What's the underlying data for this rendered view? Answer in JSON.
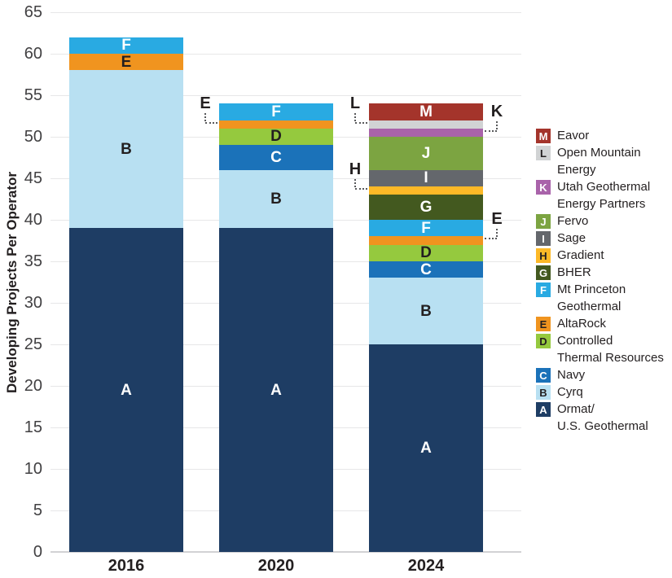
{
  "chart_data": {
    "type": "bar",
    "stacked": true,
    "title": "",
    "ylabel": "Developing Projects Per Operator",
    "xlabel": "",
    "ylim": [
      0,
      65
    ],
    "ytick_step": 5,
    "grid": true,
    "legend_position": "right",
    "categories": [
      "2016",
      "2020",
      "2024"
    ],
    "series": [
      {
        "key": "A",
        "name": "Ormat/U.S. Geothermal",
        "legend_lines": [
          "Ormat/",
          "U.S. Geothermal"
        ],
        "color": "#1e3d64",
        "text": "light",
        "values": [
          39,
          39,
          25
        ]
      },
      {
        "key": "B",
        "name": "Cyrq",
        "legend_lines": [
          "Cyrq"
        ],
        "color": "#b8e0f2",
        "text": "dark",
        "values": [
          19,
          7,
          8
        ]
      },
      {
        "key": "C",
        "name": "Navy",
        "legend_lines": [
          "Navy"
        ],
        "color": "#1b72b9",
        "text": "light",
        "values": [
          0,
          3,
          2
        ]
      },
      {
        "key": "D",
        "name": "Controlled Thermal Resources",
        "legend_lines": [
          "Controlled",
          "Thermal Resources"
        ],
        "color": "#95c93e",
        "text": "dark",
        "values": [
          0,
          2,
          2
        ]
      },
      {
        "key": "E",
        "name": "AltaRock",
        "legend_lines": [
          "AltaRock"
        ],
        "color": "#f0941f",
        "text": "dark",
        "values": [
          2,
          1,
          1
        ]
      },
      {
        "key": "F",
        "name": "Mt Princeton Geothermal",
        "legend_lines": [
          "Mt Princeton",
          "Geothermal"
        ],
        "color": "#29aae2",
        "text": "light",
        "values": [
          2,
          2,
          2
        ]
      },
      {
        "key": "G",
        "name": "BHER",
        "legend_lines": [
          "BHER"
        ],
        "color": "#43591f",
        "text": "light",
        "values": [
          0,
          0,
          3
        ]
      },
      {
        "key": "H",
        "name": "Gradient",
        "legend_lines": [
          "Gradient"
        ],
        "color": "#fdb927",
        "text": "dark",
        "values": [
          0,
          0,
          1
        ]
      },
      {
        "key": "I",
        "name": "Sage",
        "legend_lines": [
          "Sage"
        ],
        "color": "#64676c",
        "text": "light",
        "values": [
          0,
          0,
          2
        ]
      },
      {
        "key": "J",
        "name": "Fervo",
        "legend_lines": [
          "Fervo"
        ],
        "color": "#7ca441",
        "text": "light",
        "values": [
          0,
          0,
          4
        ]
      },
      {
        "key": "K",
        "name": "Utah Geothermal Energy Partners",
        "legend_lines": [
          "Utah Geothermal",
          "Energy Partners"
        ],
        "color": "#a963aa",
        "text": "light",
        "values": [
          0,
          0,
          1
        ]
      },
      {
        "key": "L",
        "name": "Open Mountain Energy",
        "legend_lines": [
          "Open Mountain",
          "Energy"
        ],
        "color": "#d1d3d4",
        "text": "dark",
        "values": [
          0,
          0,
          1
        ]
      },
      {
        "key": "M",
        "name": "Eavor",
        "legend_lines": [
          "Eavor"
        ],
        "color": "#a4342b",
        "text": "light",
        "values": [
          0,
          0,
          2
        ]
      }
    ],
    "callouts": [
      {
        "letter": "E",
        "category": "2020",
        "series": "E",
        "side": "left"
      },
      {
        "letter": "L",
        "category": "2024",
        "series": "L",
        "side": "left"
      },
      {
        "letter": "K",
        "category": "2024",
        "series": "K",
        "side": "right"
      },
      {
        "letter": "H",
        "category": "2024",
        "series": "H",
        "side": "left"
      },
      {
        "letter": "E",
        "category": "2024",
        "series": "E",
        "side": "right"
      }
    ],
    "bar_label_min_value": 2,
    "colors": {
      "dark_text": "#231f20",
      "light_text": "#ffffff",
      "gridline": "#e7e7e8",
      "leader": "#58595b"
    }
  }
}
